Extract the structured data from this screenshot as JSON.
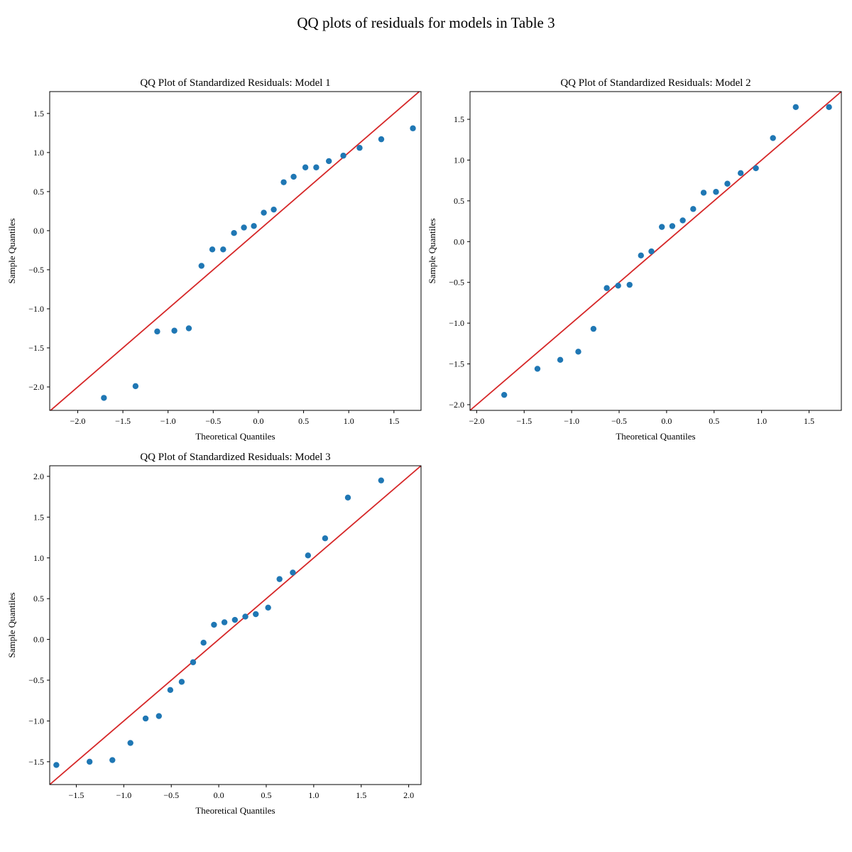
{
  "figure": {
    "title": "QQ plots of residuals for models in Table 3"
  },
  "chart_data": [
    {
      "type": "scatter",
      "title": "QQ Plot of Standardized Residuals: Model 1",
      "xlabel": "Theoretical Quantiles",
      "ylabel": "Sample Quantiles",
      "xlim": [
        -2.31,
        1.8
      ],
      "ylim": [
        -2.3,
        1.78
      ],
      "xticks": [
        -2.0,
        -1.5,
        -1.0,
        -0.5,
        0.0,
        0.5,
        1.0,
        1.5
      ],
      "yticks": [
        -2.0,
        -1.5,
        -1.0,
        -0.5,
        0.0,
        0.5,
        1.0,
        1.5
      ],
      "reference_line": "45-degree (y = x)",
      "line_color": "#d62728",
      "marker_color": "#1f77b4",
      "points": [
        {
          "x": -1.71,
          "y": -2.14
        },
        {
          "x": -1.36,
          "y": -1.99
        },
        {
          "x": -1.12,
          "y": -1.29
        },
        {
          "x": -0.93,
          "y": -1.28
        },
        {
          "x": -0.77,
          "y": -1.25
        },
        {
          "x": -0.63,
          "y": -0.45
        },
        {
          "x": -0.51,
          "y": -0.24
        },
        {
          "x": -0.39,
          "y": -0.24
        },
        {
          "x": -0.27,
          "y": -0.03
        },
        {
          "x": -0.16,
          "y": 0.04
        },
        {
          "x": -0.05,
          "y": 0.06
        },
        {
          "x": 0.06,
          "y": 0.23
        },
        {
          "x": 0.17,
          "y": 0.27
        },
        {
          "x": 0.28,
          "y": 0.62
        },
        {
          "x": 0.39,
          "y": 0.69
        },
        {
          "x": 0.52,
          "y": 0.81
        },
        {
          "x": 0.64,
          "y": 0.81
        },
        {
          "x": 0.78,
          "y": 0.89
        },
        {
          "x": 0.94,
          "y": 0.96
        },
        {
          "x": 1.12,
          "y": 1.06
        },
        {
          "x": 1.36,
          "y": 1.17
        },
        {
          "x": 1.71,
          "y": 1.31
        }
      ]
    },
    {
      "type": "scatter",
      "title": "QQ Plot of Standardized Residuals: Model 2",
      "xlabel": "Theoretical Quantiles",
      "ylabel": "Sample Quantiles",
      "xlim": [
        -2.07,
        1.84
      ],
      "ylim": [
        -2.07,
        1.84
      ],
      "xticks": [
        -2.0,
        -1.5,
        -1.0,
        -0.5,
        0.0,
        0.5,
        1.0,
        1.5
      ],
      "yticks": [
        -2.0,
        -1.5,
        -1.0,
        -0.5,
        0.0,
        0.5,
        1.0,
        1.5
      ],
      "reference_line": "45-degree (y = x)",
      "line_color": "#d62728",
      "marker_color": "#1f77b4",
      "points": [
        {
          "x": -1.71,
          "y": -1.88
        },
        {
          "x": -1.36,
          "y": -1.56
        },
        {
          "x": -1.12,
          "y": -1.45
        },
        {
          "x": -0.93,
          "y": -1.35
        },
        {
          "x": -0.77,
          "y": -1.07
        },
        {
          "x": -0.63,
          "y": -0.57
        },
        {
          "x": -0.51,
          "y": -0.54
        },
        {
          "x": -0.39,
          "y": -0.53
        },
        {
          "x": -0.27,
          "y": -0.17
        },
        {
          "x": -0.16,
          "y": -0.12
        },
        {
          "x": -0.05,
          "y": 0.18
        },
        {
          "x": 0.06,
          "y": 0.19
        },
        {
          "x": 0.17,
          "y": 0.26
        },
        {
          "x": 0.28,
          "y": 0.4
        },
        {
          "x": 0.39,
          "y": 0.6
        },
        {
          "x": 0.52,
          "y": 0.61
        },
        {
          "x": 0.64,
          "y": 0.71
        },
        {
          "x": 0.78,
          "y": 0.84
        },
        {
          "x": 0.94,
          "y": 0.9
        },
        {
          "x": 1.12,
          "y": 1.27
        },
        {
          "x": 1.36,
          "y": 1.65
        },
        {
          "x": 1.71,
          "y": 1.65
        }
      ]
    },
    {
      "type": "scatter",
      "title": "QQ Plot of Standardized Residuals: Model 3",
      "xlabel": "Theoretical Quantiles",
      "ylabel": "Sample Quantiles",
      "xlim": [
        -1.78,
        2.13
      ],
      "ylim": [
        -1.78,
        2.13
      ],
      "xticks": [
        -1.5,
        -1.0,
        -0.5,
        0.0,
        0.5,
        1.0,
        1.5,
        2.0
      ],
      "yticks": [
        -1.5,
        -1.0,
        -0.5,
        0.0,
        0.5,
        1.0,
        1.5,
        2.0
      ],
      "reference_line": "45-degree (y = x)",
      "line_color": "#d62728",
      "marker_color": "#1f77b4",
      "points": [
        {
          "x": -1.71,
          "y": -1.54
        },
        {
          "x": -1.36,
          "y": -1.5
        },
        {
          "x": -1.12,
          "y": -1.48
        },
        {
          "x": -0.93,
          "y": -1.27
        },
        {
          "x": -0.77,
          "y": -0.97
        },
        {
          "x": -0.63,
          "y": -0.94
        },
        {
          "x": -0.51,
          "y": -0.62
        },
        {
          "x": -0.39,
          "y": -0.52
        },
        {
          "x": -0.27,
          "y": -0.28
        },
        {
          "x": -0.16,
          "y": -0.04
        },
        {
          "x": -0.05,
          "y": 0.18
        },
        {
          "x": 0.06,
          "y": 0.21
        },
        {
          "x": 0.17,
          "y": 0.24
        },
        {
          "x": 0.28,
          "y": 0.28
        },
        {
          "x": 0.39,
          "y": 0.31
        },
        {
          "x": 0.52,
          "y": 0.39
        },
        {
          "x": 0.64,
          "y": 0.74
        },
        {
          "x": 0.78,
          "y": 0.82
        },
        {
          "x": 0.94,
          "y": 1.03
        },
        {
          "x": 1.12,
          "y": 1.24
        },
        {
          "x": 1.36,
          "y": 1.74
        },
        {
          "x": 1.71,
          "y": 1.95
        }
      ]
    }
  ]
}
